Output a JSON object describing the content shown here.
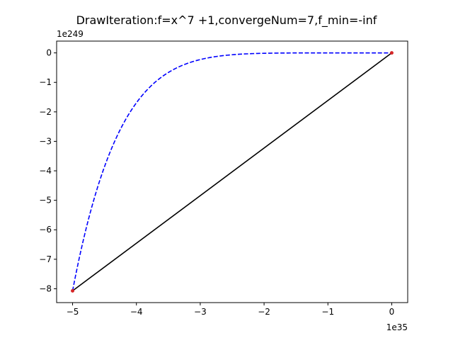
{
  "chart_data": {
    "type": "line",
    "title": "DrawIteration:f=x^7 +1,convergeNum=7,f_min=-inf",
    "xlabel": "",
    "ylabel": "",
    "x_offset_label": "1e35",
    "y_offset_label": "1e249",
    "x_scale_exponent": 35,
    "y_scale_exponent": 249,
    "xlim": [
      -5.25,
      0.25
    ],
    "ylim": [
      -8.47,
      0.4
    ],
    "xticks": [
      -5,
      -4,
      -3,
      -2,
      -1,
      0
    ],
    "xtick_labels": [
      "−5",
      "−4",
      "−3",
      "−2",
      "−1",
      "0"
    ],
    "yticks": [
      0,
      -1,
      -2,
      -3,
      -4,
      -5,
      -6,
      -7,
      -8
    ],
    "ytick_labels": [
      "0",
      "−1",
      "−2",
      "−3",
      "−4",
      "−5",
      "−6",
      "−7",
      "−8"
    ],
    "grid": false,
    "legend": false,
    "series": [
      {
        "kind": "function-curve",
        "style": "dashed",
        "color": "#0000ff",
        "function": "x^7 + 1",
        "x_range": [
          -5.0,
          0.0
        ]
      },
      {
        "kind": "iteration-path",
        "style": "solid",
        "color": "#000000",
        "points": [
          {
            "x": -5.0,
            "y": -8.07
          },
          {
            "x": 0.0,
            "y": 0.0
          }
        ]
      },
      {
        "kind": "iteration-markers",
        "style": "marker",
        "color": "#d62728",
        "points": [
          {
            "x": -5.0,
            "y": -8.07
          },
          {
            "x": 0.0,
            "y": 0.0
          }
        ]
      }
    ]
  }
}
